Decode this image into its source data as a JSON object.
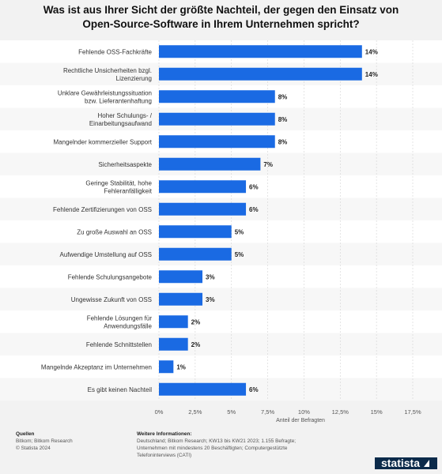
{
  "header": {
    "title": "Was ist aus Ihrer Sicht der größte Nachteil, der gegen den Einsatz von Open-Source-Software in Ihrem Unternehmen spricht?"
  },
  "chart_data": {
    "type": "bar",
    "orientation": "horizontal",
    "categories": [
      "Fehlende OSS-Fachkräfte",
      "Rechtliche Unsicherheiten bzgl. Lizenzierung",
      "Unklare Gewährleistungssituation bzw. Lieferantenhaftung",
      "Hoher Schulungs- / Einarbeitungsaufwand",
      "Mangelnder kommerzieller Support",
      "Sicherheitsaspekte",
      "Geringe Stabilität, hohe Fehleranfälligkeit",
      "Fehlende Zertifizierungen von OSS",
      "Zu große Auswahl an OSS",
      "Aufwendige Umstellung auf OSS",
      "Fehlende Schulungsangebote",
      "Ungewisse Zukunft von OSS",
      "Fehlende Lösungen für Anwendungsfälle",
      "Fehlende Schnittstellen",
      "Mangelnde Akzeptanz im Unternehmen",
      "Es gibt keinen Nachteil"
    ],
    "values": [
      14,
      14,
      8,
      8,
      8,
      7,
      6,
      6,
      5,
      5,
      3,
      3,
      2,
      2,
      1,
      6
    ],
    "data_labels": [
      "14%",
      "14%",
      "8%",
      "8%",
      "8%",
      "7%",
      "6%",
      "6%",
      "5%",
      "5%",
      "3%",
      "3%",
      "2%",
      "2%",
      "1%",
      "6%"
    ],
    "xlabel": "Anteil der Befragten",
    "xlim": [
      0,
      17.5
    ],
    "ticks": [
      0,
      2.5,
      5,
      7.5,
      10,
      12.5,
      15,
      17.5
    ],
    "tick_labels": [
      "0%",
      "2,5%",
      "5%",
      "7,5%",
      "10%",
      "12,5%",
      "15%",
      "17,5%"
    ],
    "bar_color": "#1a6ae3",
    "grid": true
  },
  "footer": {
    "sources_heading": "Quellen",
    "sources_line1": "Bitkom; Bitkom Research",
    "sources_line2": "© Statista 2024",
    "info_heading": "Weitere Informationen:",
    "info_line1": "Deutschland; Bitkom Research; KW13 bis KW21 2023; 1.155 Befragte;",
    "info_line2": "Unternehmen mit mindestens 20 Beschäftigten; Computergestützte",
    "info_line3": "Telefoninterviews (CATI)",
    "logo_text": "statista"
  }
}
